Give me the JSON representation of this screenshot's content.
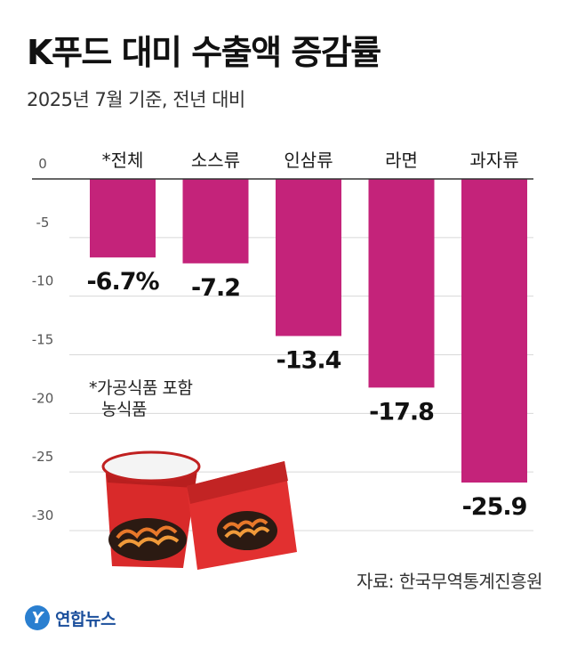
{
  "header": {
    "title": "K푸드 대미 수출액 증감률",
    "subtitle": "2025년 7월 기준, 전년 대비"
  },
  "note": {
    "line1": "*가공식품 포함",
    "line2": "농식품"
  },
  "source": "자료: 한국무역통계진흥원",
  "logo": {
    "mark": "Y",
    "text": "연합뉴스"
  },
  "colors": {
    "bar": "#c4237a",
    "grid": "#d8d8d8",
    "axis": "#555555"
  },
  "chart_data": {
    "type": "bar",
    "categories": [
      "*전체",
      "소스류",
      "인삼류",
      "라면",
      "과자류"
    ],
    "values": [
      -6.7,
      -7.2,
      -13.4,
      -17.8,
      -25.9
    ],
    "value_labels": [
      "-6.7%",
      "-7.2",
      "-13.4",
      "-17.8",
      "-25.9"
    ],
    "yticks": [
      0,
      -5,
      -10,
      -15,
      -20,
      -25,
      -30
    ],
    "ylim": [
      -30,
      0
    ],
    "grid": true,
    "legend": "none"
  }
}
